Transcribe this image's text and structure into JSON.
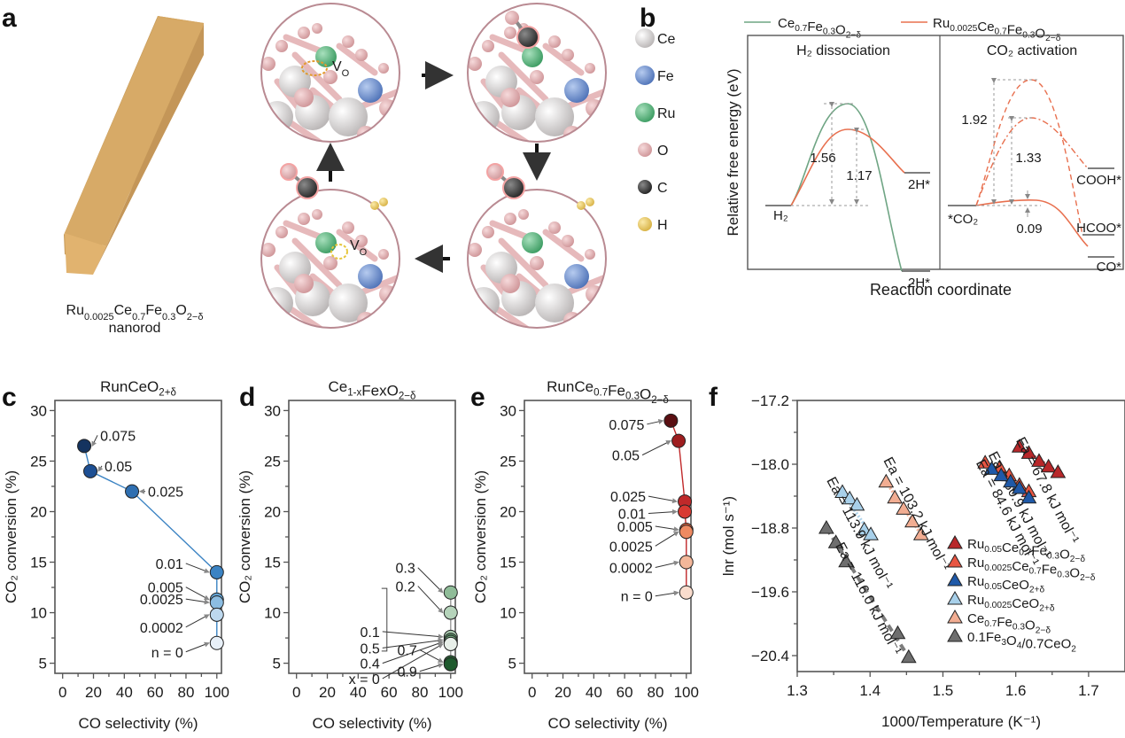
{
  "figure": {
    "panel_labels": [
      "a",
      "b",
      "c",
      "d",
      "e",
      "f"
    ],
    "panel_a": {
      "nanorod_label_main": "Ru",
      "nanorod_formula_parts": [
        {
          "t": "Ru",
          "sub": false
        },
        {
          "t": "0.0025",
          "sub": true
        },
        {
          "t": "Ce",
          "sub": false
        },
        {
          "t": "0.7",
          "sub": true
        },
        {
          "t": "Fe",
          "sub": false
        },
        {
          "t": "0.3",
          "sub": true
        },
        {
          "t": "O",
          "sub": false
        },
        {
          "t": "2−δ",
          "sub": true
        }
      ],
      "nanorod_caption": "nanorod",
      "vacancy_label": "V",
      "vacancy_sub": "O",
      "atom_legend": [
        {
          "name": "Ce",
          "color": "#e4e2e2"
        },
        {
          "name": "Fe",
          "color": "#7f9fd6"
        },
        {
          "name": "Ru",
          "color": "#6cc08b"
        },
        {
          "name": "O",
          "color": "#e3b5b8"
        },
        {
          "name": "C",
          "color": "#4a4a4a"
        },
        {
          "name": "H",
          "color": "#ecd070"
        }
      ],
      "colors": {
        "rod_front": "#e2b26e",
        "rod_side": "#c99f5f",
        "rod_top": "#d9aa66",
        "circle_border": "#b98a92"
      }
    },
    "panel_b": {
      "legend": [
        {
          "label": "Ce0.7Fe0.3O2−δ",
          "color": "#6fa584"
        },
        {
          "label": "Ru0.0025Ce0.7Fe0.3O2−δ",
          "color": "#e8704f"
        }
      ],
      "left_title": "H₂ dissociation",
      "right_title": "CO₂ activation",
      "ylabel": "Relative free energy (eV)",
      "xlabel": "Reaction coordinate",
      "left_states": {
        "start": "H₂",
        "end_ru": "2H*",
        "end_ce": "2H*"
      },
      "right_states": {
        "start": "*CO₂",
        "cooh": "COOH*",
        "hcoo": "HCOO*",
        "co": "CO*"
      },
      "barriers_eV": {
        "h2_ce": 1.56,
        "h2_ru": 1.17,
        "co2_hcoo": 1.92,
        "co2_cooh": 1.33,
        "co2_co": 0.09
      }
    }
  },
  "chart_data": [
    {
      "panel": "c",
      "type": "scatter",
      "title": "RunCeO2+δ",
      "xlabel": "CO selectivity (%)",
      "ylabel": "CO₂ conversion (%)",
      "xlim": [
        -5,
        103
      ],
      "ylim": [
        4,
        31
      ],
      "xticks": [
        0,
        20,
        40,
        60,
        80,
        100
      ],
      "yticks": [
        5,
        10,
        15,
        20,
        25,
        30
      ],
      "series_label_var": "n",
      "points": [
        {
          "label": "0.075",
          "x": 14,
          "y": 26.5,
          "color": "#14335f"
        },
        {
          "label": "0.05",
          "x": 18,
          "y": 24,
          "color": "#1d4f93"
        },
        {
          "label": "0.025",
          "x": 45,
          "y": 22,
          "color": "#2f6fb1"
        },
        {
          "label": "0.01",
          "x": 100,
          "y": 14,
          "color": "#3b83c3"
        },
        {
          "label": "0.005",
          "x": 100,
          "y": 11.3,
          "color": "#62a3d4"
        },
        {
          "label": "0.0025",
          "x": 100,
          "y": 11,
          "color": "#8cbde2"
        },
        {
          "label": "0.0002",
          "x": 100,
          "y": 9.8,
          "color": "#bdd8ee"
        },
        {
          "label": "n = 0",
          "x": 100,
          "y": 7,
          "color": "#e8f0f8"
        }
      ],
      "line_color": "#3b83c3"
    },
    {
      "panel": "d",
      "type": "scatter",
      "title": "Ce1-xFexO2−δ",
      "xlabel": "CO selectivity (%)",
      "ylabel": "CO₂ conversion (%)",
      "xlim": [
        -5,
        103
      ],
      "ylim": [
        4,
        31
      ],
      "xticks": [
        0,
        20,
        40,
        60,
        80,
        100
      ],
      "yticks": [
        5,
        10,
        15,
        20,
        25,
        30
      ],
      "series_label_var": "x",
      "points": [
        {
          "label": "0.3",
          "x": 100,
          "y": 12,
          "color": "#8fbc98"
        },
        {
          "label": "0.2",
          "x": 100,
          "y": 10,
          "color": "#b5d3ba"
        },
        {
          "label": "0.1",
          "x": 100,
          "y": 7.6,
          "color": "#a7c8ad"
        },
        {
          "label": "0.5",
          "x": 100,
          "y": 7.3,
          "color": "#5f9a6d"
        },
        {
          "label": "0.4",
          "x": 100,
          "y": 7.1,
          "color": "#6ea97a"
        },
        {
          "label": "x = 0",
          "x": 100,
          "y": 6.9,
          "color": "#e8efe9"
        },
        {
          "label": "0.7",
          "x": 100,
          "y": 5.1,
          "color": "#2f6d3d"
        },
        {
          "label": "0.9",
          "x": 100,
          "y": 4.9,
          "color": "#1f5a2e"
        }
      ],
      "line_color": "#9a9a9a"
    },
    {
      "panel": "e",
      "type": "scatter",
      "title": "RunCe0.7Fe0.3O2−δ",
      "xlabel": "CO selectivity (%)",
      "ylabel": "CO₂ conversion (%)",
      "xlim": [
        -5,
        103
      ],
      "ylim": [
        4,
        31
      ],
      "xticks": [
        0,
        20,
        40,
        60,
        80,
        100
      ],
      "yticks": [
        5,
        10,
        15,
        20,
        25,
        30
      ],
      "series_label_var": "n",
      "points": [
        {
          "label": "0.075",
          "x": 90,
          "y": 29,
          "color": "#5a0f12"
        },
        {
          "label": "0.05",
          "x": 95,
          "y": 27,
          "color": "#9e1d1f"
        },
        {
          "label": "0.025",
          "x": 99,
          "y": 21,
          "color": "#c0292a"
        },
        {
          "label": "0.01",
          "x": 99,
          "y": 20,
          "color": "#d83a32"
        },
        {
          "label": "0.005",
          "x": 100,
          "y": 18.2,
          "color": "#e8643f"
        },
        {
          "label": "0.0025",
          "x": 100,
          "y": 18,
          "color": "#ee8a62"
        },
        {
          "label": "0.0002",
          "x": 100,
          "y": 15,
          "color": "#f3b79a"
        },
        {
          "label": "n = 0",
          "x": 100,
          "y": 12,
          "color": "#f9dccd"
        }
      ],
      "line_color": "#c0292a"
    },
    {
      "panel": "f",
      "type": "scatter",
      "title": "",
      "xlabel": "1000/Temperature (K⁻¹)",
      "ylabel": "lnr (mol s⁻¹)",
      "xlim": [
        1.3,
        1.75
      ],
      "ylim": [
        -20.6,
        -17.2
      ],
      "xticks": [
        1.3,
        1.4,
        1.5,
        1.6,
        1.7
      ],
      "yticks": [
        -17.2,
        -18.0,
        -18.8,
        -19.6,
        -20.4
      ],
      "xticklabels": [
        "1.3",
        "1.4",
        "1.5",
        "1.6",
        "1.7"
      ],
      "yticklabels": [
        "−17.2",
        "−18.0",
        "−18.8",
        "−19.6",
        "−20.4"
      ],
      "legend_position": "bottom-right",
      "series": [
        {
          "name": "Ru0.05Ce0.7Fe0.3O2−δ",
          "color": "#b8272a",
          "fit": "dotted",
          "ea": "Ea = 67.8 kJ mol⁻¹",
          "x": [
            1.605,
            1.618,
            1.632,
            1.645,
            1.658
          ],
          "y": [
            -17.78,
            -17.86,
            -17.96,
            -18.03,
            -18.1
          ]
        },
        {
          "name": "Ru0.0025Ce0.7Fe0.3O2−δ",
          "color": "#e85542",
          "fit": "dotted",
          "ea": "Ea = 80.9 kJ mol⁻¹",
          "x": [
            1.558,
            1.578,
            1.591,
            1.605,
            1.618
          ],
          "y": [
            -17.98,
            -18.04,
            -18.14,
            -18.26,
            -18.34
          ]
        },
        {
          "name": "Ru0.05CeO2+δ",
          "color": "#1f59a8",
          "fit": "dotted",
          "ea": "Ea = 84.6 kJ mol⁻¹",
          "x": [
            1.567,
            1.58,
            1.593,
            1.605,
            1.618
          ],
          "y": [
            -18.06,
            -18.14,
            -18.22,
            -18.3,
            -18.42
          ]
        },
        {
          "name": "Ru0.0025CeO2+δ",
          "color": "#a8d0ea",
          "fit": "dotted",
          "ea": "Ea = 113.9 kJ mol⁻¹",
          "x": [
            1.362,
            1.372,
            1.382,
            1.392,
            1.401
          ],
          "y": [
            -18.35,
            -18.43,
            -18.51,
            -18.82,
            -18.88
          ]
        },
        {
          "name": "Ce0.7Fe0.3O2−δ",
          "color": "#f2ad92",
          "fit": "dotted",
          "ea": "Ea = 103.2 kJ mol⁻¹",
          "x": [
            1.422,
            1.434,
            1.446,
            1.458,
            1.47
          ],
          "y": [
            -18.22,
            -18.42,
            -18.56,
            -18.72,
            -18.88
          ]
        },
        {
          "name": "0.1Fe3O4/0.7CeO2",
          "color": "#6e6e6e",
          "fit": "dashed",
          "ea": "Ea = 116.0 kJ mol⁻¹",
          "x": [
            1.34,
            1.353,
            1.367,
            1.438,
            1.453
          ],
          "y": [
            -18.8,
            -18.98,
            -19.22,
            -20.12,
            -20.42
          ]
        }
      ]
    }
  ]
}
